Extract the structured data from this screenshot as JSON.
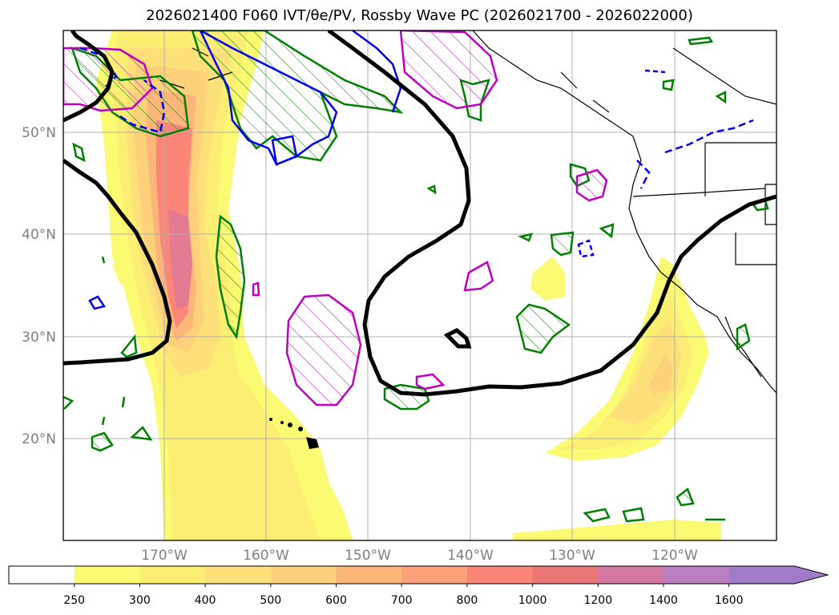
{
  "title": "2026021400 F060 IVT/θe/PV, Rossby Wave PC (2026021700 - 2026022000)",
  "map": {
    "lat_labels": [
      "50°N",
      "40°N",
      "30°N",
      "20°N"
    ],
    "lon_labels": [
      "170°W",
      "160°W",
      "150°W",
      "140°W",
      "130°W",
      "120°W"
    ]
  },
  "colorbar": {
    "levels": [
      "250",
      "300",
      "400",
      "500",
      "600",
      "700",
      "800",
      "1000",
      "1200",
      "1400",
      "1600"
    ],
    "colors": [
      "#ffffff",
      "#fbfb73",
      "#fbee73",
      "#fde07a",
      "#fdd07a",
      "#fdb67a",
      "#fca07a",
      "#fb8577",
      "#ea7777",
      "#d378a0",
      "#bb7ec0",
      "#a07cc8"
    ],
    "extend": "max"
  },
  "legend_colors": {
    "thick_contour": "#000000",
    "green_contour": "#008000",
    "magenta_contour": "#c000c0",
    "blue_contour": "#0000ee",
    "coastline": "#000000"
  }
}
